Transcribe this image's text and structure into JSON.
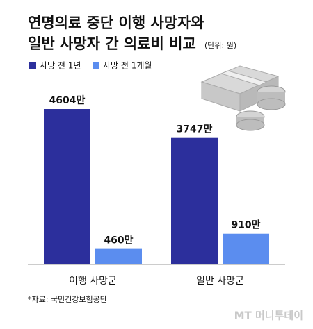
{
  "chart_data": {
    "type": "bar",
    "title": [
      "연명의료 중단 이행 사망자와",
      "일반 사망자 간 의료비 비교"
    ],
    "subtitle": "(단위: 원)",
    "categories": [
      "이행 사망군",
      "일반 사망군"
    ],
    "series": [
      {
        "name": "사망 전 1년",
        "color": "#2c2f9c",
        "values": [
          4604,
          3747
        ],
        "value_labels": [
          "4604만",
          "3747만"
        ]
      },
      {
        "name": "사망 전 1개월",
        "color": "#5b8def",
        "values": [
          460,
          910
        ],
        "value_labels": [
          "460만",
          "910만"
        ]
      }
    ],
    "source": "*자료: 국민건강보험공단",
    "watermark": "MT 머니투데이"
  }
}
